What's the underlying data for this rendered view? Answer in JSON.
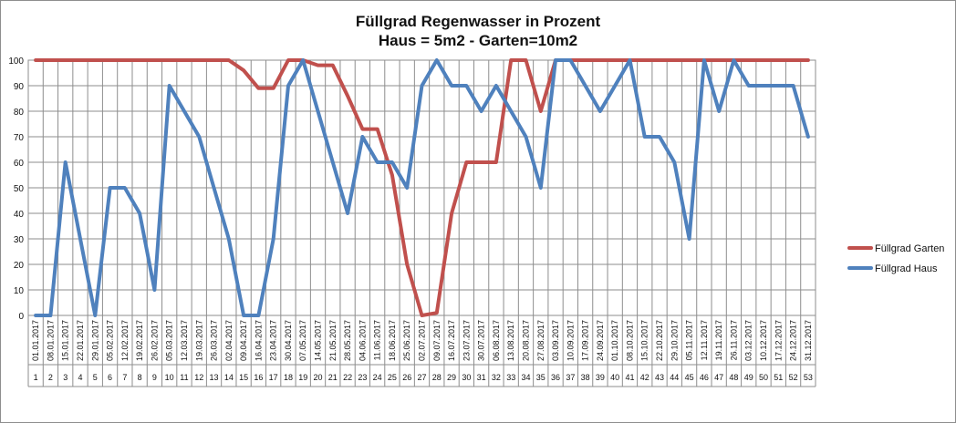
{
  "chart_data": {
    "type": "line",
    "title": "Füllgrad Regenwasser in Prozent",
    "subtitle": "Haus = 5m2 - Garten=10m2",
    "ylim": [
      0,
      100
    ],
    "yticks": [
      0,
      10,
      20,
      30,
      40,
      50,
      60,
      70,
      80,
      90,
      100
    ],
    "grid": true,
    "legend_position": "right",
    "x_dates": [
      "01.01.2017",
      "08.01.2017",
      "15.01.2017",
      "22.01.2017",
      "29.01.2017",
      "05.02.2017",
      "12.02.2017",
      "19.02.2017",
      "26.02.2017",
      "05.03.2017",
      "12.03.2017",
      "19.03.2017",
      "26.03.2017",
      "02.04.2017",
      "09.04.2017",
      "16.04.2017",
      "23.04.2017",
      "30.04.2017",
      "07.05.2017",
      "14.05.2017",
      "21.05.2017",
      "28.05.2017",
      "04.06.2017",
      "11.06.2017",
      "18.06.2017",
      "25.06.2017",
      "02.07.2017",
      "09.07.2017",
      "16.07.2017",
      "23.07.2017",
      "30.07.2017",
      "06.08.2017",
      "13.08.2017",
      "20.08.2017",
      "27.08.2017",
      "03.09.2017",
      "10.09.2017",
      "17.09.2017",
      "24.09.2017",
      "01.10.2017",
      "08.10.2017",
      "15.10.2017",
      "22.10.2017",
      "29.10.2017",
      "05.11.2017",
      "12.11.2017",
      "19.11.2017",
      "26.11.2017",
      "03.12.2017",
      "10.12.2017",
      "17.12.2017",
      "24.12.2017",
      "31.12.2017"
    ],
    "x_index": [
      "1",
      "2",
      "3",
      "4",
      "5",
      "6",
      "7",
      "8",
      "9",
      "10",
      "11",
      "12",
      "13",
      "14",
      "15",
      "16",
      "17",
      "18",
      "19",
      "20",
      "21",
      "22",
      "23",
      "24",
      "25",
      "26",
      "27",
      "28",
      "29",
      "30",
      "31",
      "32",
      "33",
      "34",
      "35",
      "36",
      "37",
      "38",
      "39",
      "40",
      "41",
      "42",
      "43",
      "44",
      "45",
      "46",
      "47",
      "48",
      "49",
      "50",
      "51",
      "52",
      "53"
    ],
    "series": [
      {
        "name": "Füllgrad Garten",
        "color": "#c0504d",
        "values": [
          100,
          100,
          100,
          100,
          100,
          100,
          100,
          100,
          100,
          100,
          100,
          100,
          100,
          100,
          96,
          89,
          89,
          100,
          100,
          98,
          98,
          86,
          73,
          73,
          55,
          20,
          0,
          1,
          40,
          60,
          60,
          60,
          100,
          100,
          80,
          100,
          100,
          100,
          100,
          100,
          100,
          100,
          100,
          100,
          100,
          100,
          100,
          100,
          100,
          100,
          100,
          100,
          100
        ]
      },
      {
        "name": "Füllgrad Haus",
        "color": "#4f81bd",
        "values": [
          0,
          0,
          60,
          30,
          0,
          50,
          50,
          40,
          10,
          90,
          80,
          70,
          50,
          30,
          0,
          0,
          30,
          90,
          100,
          80,
          60,
          40,
          70,
          60,
          60,
          50,
          90,
          100,
          90,
          90,
          80,
          90,
          80,
          70,
          50,
          100,
          100,
          90,
          80,
          90,
          100,
          70,
          70,
          60,
          30,
          100,
          80,
          100,
          90,
          90,
          90,
          90,
          70
        ]
      }
    ]
  }
}
